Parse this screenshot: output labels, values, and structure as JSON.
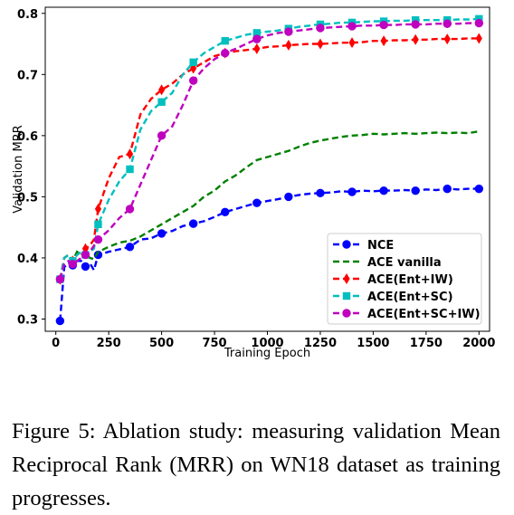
{
  "caption": "Figure 5: Ablation study: measuring validation Mean Reciprocal Rank (MRR) on WN18 dataset as training progresses.",
  "chart_data": {
    "type": "line",
    "title": "",
    "xlabel": "Training Epoch",
    "ylabel": "Validation MRR",
    "xlim": [
      -50,
      2050
    ],
    "ylim": [
      0.28,
      0.81
    ],
    "xticks": [
      0,
      250,
      500,
      750,
      1000,
      1250,
      1500,
      1750,
      2000
    ],
    "yticks": [
      0.3,
      0.4,
      0.5,
      0.6,
      0.7,
      0.8
    ],
    "xtick_labels": [
      "0",
      "250",
      "500",
      "750",
      "1000",
      "1250",
      "1500",
      "1750",
      "2000"
    ],
    "ytick_labels": [
      "0.3",
      "0.4",
      "0.5",
      "0.6",
      "0.7",
      "0.8"
    ],
    "grid": false,
    "legend_position": "lower-right",
    "series": [
      {
        "name": "NCE",
        "color": "#0000ff",
        "marker": "circle",
        "x": [
          20,
          40,
          60,
          80,
          100,
          120,
          140,
          160,
          180,
          200,
          250,
          300,
          350,
          400,
          450,
          500,
          550,
          600,
          650,
          700,
          750,
          800,
          850,
          900,
          950,
          1000,
          1050,
          1100,
          1150,
          1200,
          1250,
          1300,
          1350,
          1400,
          1450,
          1500,
          1550,
          1600,
          1650,
          1700,
          1750,
          1800,
          1850,
          1900,
          1950,
          2000
        ],
        "y": [
          0.297,
          0.385,
          0.392,
          0.388,
          0.395,
          0.395,
          0.386,
          0.392,
          0.38,
          0.405,
          0.41,
          0.414,
          0.418,
          0.43,
          0.432,
          0.44,
          0.444,
          0.452,
          0.456,
          0.46,
          0.467,
          0.475,
          0.48,
          0.485,
          0.49,
          0.493,
          0.496,
          0.5,
          0.503,
          0.505,
          0.506,
          0.507,
          0.509,
          0.508,
          0.51,
          0.509,
          0.51,
          0.51,
          0.511,
          0.51,
          0.512,
          0.511,
          0.513,
          0.512,
          0.513,
          0.513
        ]
      },
      {
        "name": "ACE vanilla",
        "color": "#008000",
        "marker": "none",
        "x": [
          20,
          40,
          60,
          80,
          100,
          120,
          140,
          160,
          180,
          200,
          250,
          300,
          350,
          400,
          450,
          500,
          550,
          600,
          650,
          700,
          750,
          800,
          850,
          900,
          950,
          1000,
          1050,
          1100,
          1150,
          1200,
          1250,
          1300,
          1350,
          1400,
          1450,
          1500,
          1550,
          1600,
          1650,
          1700,
          1750,
          1800,
          1850,
          1900,
          1950,
          2000
        ],
        "y": [
          0.365,
          0.4,
          0.405,
          0.395,
          0.41,
          0.405,
          0.41,
          0.4,
          0.398,
          0.41,
          0.418,
          0.425,
          0.428,
          0.435,
          0.445,
          0.455,
          0.465,
          0.475,
          0.485,
          0.5,
          0.51,
          0.525,
          0.535,
          0.548,
          0.56,
          0.565,
          0.57,
          0.575,
          0.582,
          0.588,
          0.592,
          0.595,
          0.598,
          0.6,
          0.601,
          0.603,
          0.602,
          0.603,
          0.604,
          0.603,
          0.604,
          0.605,
          0.604,
          0.605,
          0.604,
          0.607
        ]
      },
      {
        "name": "ACE(Ent+IW)",
        "color": "#ff0000",
        "marker": "diamond",
        "x": [
          20,
          40,
          60,
          80,
          100,
          120,
          140,
          160,
          180,
          200,
          250,
          300,
          350,
          400,
          450,
          500,
          550,
          600,
          650,
          700,
          750,
          800,
          850,
          900,
          950,
          1000,
          1050,
          1100,
          1150,
          1200,
          1250,
          1300,
          1350,
          1400,
          1450,
          1500,
          1550,
          1600,
          1650,
          1700,
          1750,
          1800,
          1850,
          1900,
          1950,
          2000
        ],
        "y": [
          0.365,
          0.4,
          0.405,
          0.395,
          0.405,
          0.41,
          0.415,
          0.42,
          0.43,
          0.48,
          0.53,
          0.565,
          0.57,
          0.635,
          0.66,
          0.675,
          0.685,
          0.7,
          0.71,
          0.72,
          0.73,
          0.735,
          0.738,
          0.74,
          0.742,
          0.745,
          0.746,
          0.748,
          0.749,
          0.75,
          0.75,
          0.751,
          0.752,
          0.752,
          0.753,
          0.755,
          0.755,
          0.756,
          0.756,
          0.757,
          0.757,
          0.758,
          0.758,
          0.758,
          0.759,
          0.759
        ]
      },
      {
        "name": "ACE(Ent+SC)",
        "color": "#00bfbf",
        "marker": "square",
        "x": [
          20,
          40,
          60,
          80,
          100,
          120,
          140,
          160,
          180,
          200,
          250,
          300,
          350,
          400,
          450,
          500,
          550,
          600,
          650,
          700,
          750,
          800,
          850,
          900,
          950,
          1000,
          1050,
          1100,
          1150,
          1200,
          1250,
          1300,
          1350,
          1400,
          1450,
          1500,
          1550,
          1600,
          1650,
          1700,
          1750,
          1800,
          1850,
          1900,
          1950,
          2000
        ],
        "y": [
          0.365,
          0.4,
          0.405,
          0.395,
          0.405,
          0.41,
          0.405,
          0.41,
          0.415,
          0.455,
          0.495,
          0.525,
          0.545,
          0.61,
          0.64,
          0.655,
          0.67,
          0.7,
          0.72,
          0.735,
          0.745,
          0.755,
          0.76,
          0.765,
          0.768,
          0.77,
          0.772,
          0.775,
          0.778,
          0.78,
          0.782,
          0.783,
          0.785,
          0.785,
          0.786,
          0.787,
          0.787,
          0.788,
          0.788,
          0.789,
          0.789,
          0.789,
          0.789,
          0.79,
          0.79,
          0.791
        ]
      },
      {
        "name": "ACE(Ent+SC+IW)",
        "color": "#bf00bf",
        "marker": "circle",
        "x": [
          20,
          40,
          60,
          80,
          100,
          120,
          140,
          160,
          180,
          200,
          250,
          300,
          350,
          400,
          450,
          500,
          550,
          600,
          650,
          700,
          750,
          800,
          850,
          900,
          950,
          1000,
          1050,
          1100,
          1150,
          1200,
          1250,
          1300,
          1350,
          1400,
          1450,
          1500,
          1550,
          1600,
          1650,
          1700,
          1750,
          1800,
          1850,
          1900,
          1950,
          2000
        ],
        "y": [
          0.365,
          0.39,
          0.395,
          0.39,
          0.395,
          0.4,
          0.405,
          0.41,
          0.42,
          0.43,
          0.445,
          0.465,
          0.48,
          0.52,
          0.56,
          0.6,
          0.615,
          0.65,
          0.69,
          0.71,
          0.725,
          0.735,
          0.742,
          0.75,
          0.758,
          0.764,
          0.768,
          0.77,
          0.772,
          0.774,
          0.776,
          0.777,
          0.778,
          0.779,
          0.78,
          0.78,
          0.781,
          0.781,
          0.782,
          0.782,
          0.782,
          0.783,
          0.783,
          0.783,
          0.784,
          0.784
        ]
      }
    ]
  }
}
